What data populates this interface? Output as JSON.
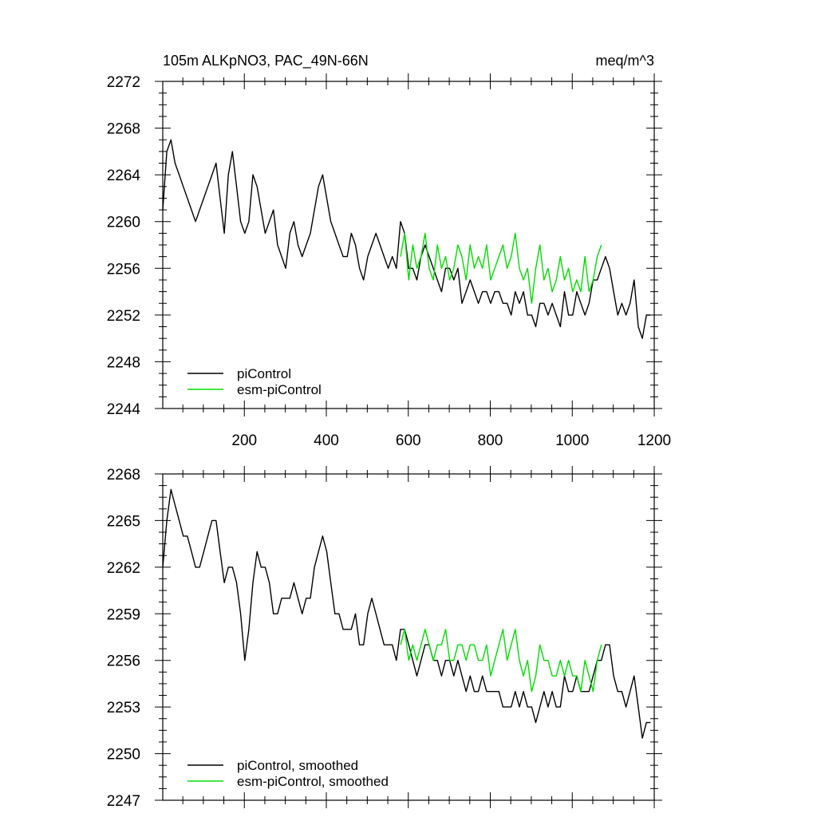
{
  "figure": {
    "title_left": "105m ALKpNO3, PAC_49N-66N",
    "title_right": "meq/m^3"
  },
  "colors": {
    "piControl": "#000000",
    "esm_piControl": "#00dd00"
  },
  "chart_data": [
    {
      "type": "line",
      "title": "105m ALKpNO3, PAC_49N-66N",
      "units": "meq/m^3",
      "xlim": [
        1,
        1200
      ],
      "ylim": [
        2244,
        2272
      ],
      "x_ticks": [
        200,
        400,
        600,
        800,
        1000,
        1200
      ],
      "y_ticks": [
        2244,
        2248,
        2252,
        2256,
        2260,
        2264,
        2268,
        2272
      ],
      "legend_position": "bottom-left",
      "series": [
        {
          "name": "piControl",
          "color": "#000000",
          "x_start": 1,
          "x_step": 10,
          "values": [
            2261,
            2266,
            2267,
            2265,
            2264,
            2263,
            2262,
            2261,
            2260,
            2261,
            2262,
            2263,
            2264,
            2265,
            2262,
            2259,
            2264,
            2266,
            2263,
            2260,
            2259,
            2260,
            2264,
            2263,
            2261,
            2259,
            2260,
            2261,
            2258,
            2257,
            2256,
            2259,
            2260,
            2258,
            2257,
            2258,
            2259,
            2261,
            2263,
            2264,
            2262,
            2260,
            2259,
            2258,
            2257,
            2257,
            2259,
            2258,
            2256,
            2255,
            2257,
            2258,
            2259,
            2258,
            2257,
            2256,
            2257,
            2256,
            2260,
            2259,
            2256,
            2256,
            2255,
            2257,
            2258,
            2257,
            2256,
            2255,
            2254,
            2256,
            2256,
            2255,
            2256,
            2253,
            2254,
            2255,
            2254,
            2253,
            2254,
            2254,
            2253,
            2254,
            2254,
            2253,
            2253,
            2252,
            2254,
            2253,
            2254,
            2252,
            2252,
            2251,
            2253,
            2253,
            2252,
            2253,
            2252,
            2251,
            2254,
            2252,
            2252,
            2254,
            2253,
            2252,
            2253,
            2255,
            2255,
            2256,
            2257,
            2256,
            2254,
            2252,
            2253,
            2252,
            2253,
            2255,
            2251,
            2250,
            2252,
            2252
          ]
        },
        {
          "name": "esm-piControl",
          "color": "#00dd00",
          "x_start": 581,
          "x_step": 10,
          "values": [
            2257,
            2259,
            2255,
            2258,
            2256,
            2257,
            2259,
            2256,
            2255,
            2258,
            2256,
            2257,
            2255,
            2256,
            2258,
            2257,
            2255,
            2258,
            2256,
            2257,
            2256,
            2258,
            2255,
            2256,
            2257,
            2258,
            2256,
            2257,
            2259,
            2256,
            2255,
            2256,
            2253,
            2256,
            2258,
            2255,
            2256,
            2254,
            2255,
            2257,
            2255,
            2256,
            2254,
            2255,
            2254,
            2257,
            2254,
            2255,
            2257,
            2258
          ]
        }
      ]
    },
    {
      "type": "line",
      "title": "",
      "xlim": [
        1,
        1200
      ],
      "ylim": [
        2247,
        2268
      ],
      "y_ticks": [
        2247,
        2250,
        2253,
        2256,
        2259,
        2262,
        2265,
        2268
      ],
      "legend_position": "bottom-left",
      "series": [
        {
          "name": "piControl, smoothed",
          "color": "#000000",
          "x_start": 1,
          "x_step": 10,
          "values": [
            2262,
            2265,
            2267,
            2266,
            2265,
            2264,
            2264,
            2263,
            2262,
            2262,
            2263,
            2264,
            2265,
            2265,
            2263,
            2261,
            2262,
            2262,
            2261,
            2259,
            2256,
            2258,
            2261,
            2263,
            2262,
            2262,
            2261,
            2259,
            2259,
            2260,
            2260,
            2260,
            2261,
            2260,
            2259,
            2260,
            2260,
            2262,
            2263,
            2264,
            2263,
            2261,
            2259,
            2259,
            2258,
            2258,
            2258,
            2259,
            2257,
            2257,
            2259,
            2260,
            2259,
            2258,
            2257,
            2257,
            2257,
            2256,
            2258,
            2258,
            2257,
            2256,
            2255,
            2256,
            2257,
            2257,
            2256,
            2256,
            2255,
            2256,
            2256,
            2255,
            2256,
            2255,
            2254,
            2255,
            2254,
            2254,
            2255,
            2254,
            2254,
            2254,
            2254,
            2253,
            2253,
            2253,
            2254,
            2253,
            2254,
            2253,
            2253,
            2252,
            2253,
            2254,
            2253,
            2254,
            2253,
            2253,
            2255,
            2254,
            2254,
            2255,
            2254,
            2254,
            2254,
            2255,
            2256,
            2256,
            2257,
            2257,
            2255,
            2254,
            2254,
            2253,
            2254,
            2255,
            2253,
            2251,
            2252,
            2252
          ]
        },
        {
          "name": "esm-piControl, smoothed",
          "color": "#00dd00",
          "x_start": 581,
          "x_step": 10,
          "values": [
            2257,
            2258,
            2256,
            2257,
            2256,
            2257,
            2258,
            2257,
            2256,
            2257,
            2257,
            2258,
            2256,
            2256,
            2257,
            2257,
            2256,
            2257,
            2257,
            2256,
            2256,
            2257,
            2255,
            2256,
            2257,
            2258,
            2256,
            2257,
            2258,
            2256,
            2255,
            2256,
            2254,
            2255,
            2257,
            2256,
            2256,
            2255,
            2255,
            2256,
            2255,
            2256,
            2255,
            2255,
            2254,
            2256,
            2255,
            2254,
            2256,
            2257
          ]
        }
      ]
    }
  ]
}
